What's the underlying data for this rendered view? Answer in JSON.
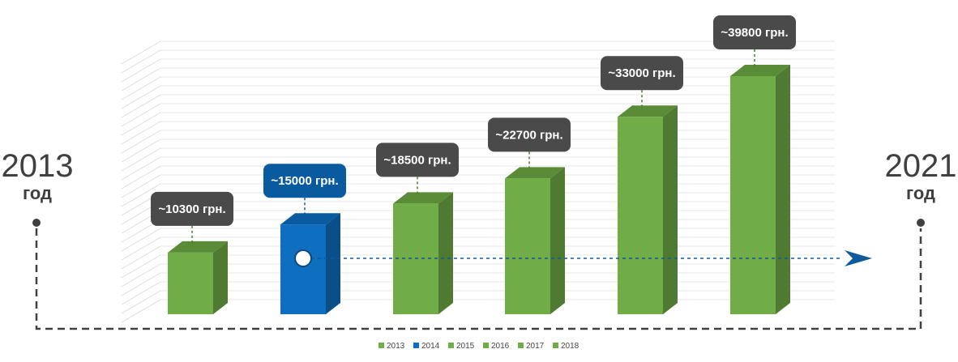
{
  "start": {
    "year": "2013",
    "unit": "год"
  },
  "end": {
    "year": "2021",
    "unit": "год"
  },
  "colors": {
    "green_front": "#70ad47",
    "green_side": "#4e7a31",
    "green_top": "#5a8c38",
    "blue_front": "#0e6fc1",
    "blue_side": "#0b4f88",
    "blue_top": "#0a5aa0",
    "label_dark": "#4a4a4a",
    "label_blue": "#0a5aa0",
    "arrow": "#0e5a9c",
    "timeline": "#404040"
  },
  "chart_data": {
    "type": "bar",
    "categories": [
      "2013",
      "2014",
      "2015",
      "2016",
      "2017",
      "2018"
    ],
    "values": [
      10300,
      15000,
      18500,
      22700,
      33000,
      39800
    ],
    "labels": [
      "~10300 грн.",
      "~15000 грн.",
      "~18500 грн.",
      "~22700 грн.",
      "~33000 грн.",
      "~39800 грн."
    ],
    "highlight_index": 1,
    "legend": [
      "2013",
      "2014",
      "2015",
      "2016",
      "2017",
      "2018"
    ],
    "legend_placement": "bottom",
    "grid": true
  }
}
